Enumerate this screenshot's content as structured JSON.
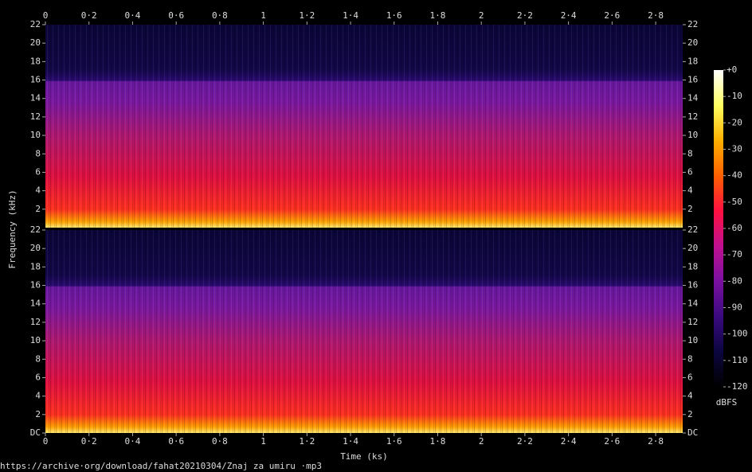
{
  "chart_data": {
    "type": "spectrogram",
    "x_label": "Time (ks)",
    "y_label": "Frequency (kHz)",
    "caption": "https://archive·org/download/fahat20210304/Znaj za umiru ·mp3",
    "xlim": [
      0,
      2.924
    ],
    "xticks": [
      0,
      {
        "value": 0.2,
        "label": "0·2"
      },
      {
        "value": 0.4,
        "label": "0·4"
      },
      {
        "value": 0.6,
        "label": "0·6"
      },
      {
        "value": 0.8,
        "label": "0·8"
      },
      1,
      {
        "value": 1.2,
        "label": "1·2"
      },
      {
        "value": 1.4,
        "label": "1·4"
      },
      {
        "value": 1.6,
        "label": "1·6"
      },
      {
        "value": 1.8,
        "label": "1·8"
      },
      2,
      {
        "value": 2.2,
        "label": "2·2"
      },
      {
        "value": 2.4,
        "label": "2·4"
      },
      {
        "value": 2.6,
        "label": "2·6"
      },
      {
        "value": 2.8,
        "label": "2·8"
      }
    ],
    "ylim": [
      0,
      22
    ],
    "panels": [
      {
        "yticks": [
          2,
          4,
          6,
          8,
          10,
          12,
          14,
          16,
          18,
          20,
          22
        ]
      },
      {
        "yticks": [
          {
            "value": 0,
            "label": "DC"
          },
          2,
          4,
          6,
          8,
          10,
          12,
          14,
          16,
          18,
          20,
          22
        ]
      }
    ],
    "colorbar": {
      "label": "dBFS",
      "lim": [
        -120,
        0
      ],
      "ticks": [
        {
          "value": 0,
          "label": "+0"
        },
        -10,
        -20,
        -30,
        -40,
        -50,
        -60,
        -70,
        -80,
        -90,
        -100,
        -110,
        -120
      ],
      "colors": [
        "#000000",
        "#0c0640",
        "#3a0a80",
        "#7a10a0",
        "#c01090",
        "#ff1040",
        "#ff6000",
        "#ffb000",
        "#ffff60",
        "#ffffff"
      ]
    }
  }
}
